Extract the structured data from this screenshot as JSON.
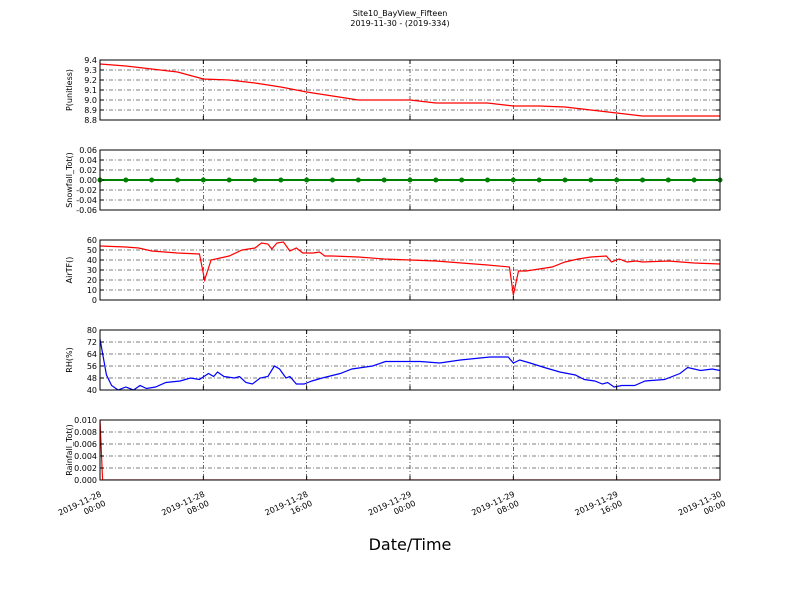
{
  "title": "Site10_BayView_Fifteen",
  "subtitle": "2019-11-30 - (2019-334)",
  "xlabel": "Date/Time",
  "chart_data": [
    {
      "type": "line",
      "ylabel": "P(unitless)",
      "color": "#ff0000",
      "grid": true,
      "xlim": [
        "2019-11-28 00:00",
        "2019-11-30 00:00"
      ],
      "xticks": [
        "2019-11-28 00:00",
        "2019-11-28 08:00",
        "2019-11-28 16:00",
        "2019-11-29 00:00",
        "2019-11-29 08:00",
        "2019-11-29 16:00",
        "2019-11-30 00:00"
      ],
      "ylim": [
        8.8,
        9.4
      ],
      "yticks": [
        8.8,
        8.9,
        {
          "value": 9,
          "label": "9.0"
        },
        9.1,
        9.2,
        9.3,
        9.4
      ],
      "x": [
        "2019-11-28 00:00",
        "2019-11-28 02:00",
        "2019-11-28 04:00",
        "2019-11-28 06:00",
        "2019-11-28 08:00",
        "2019-11-28 10:00",
        "2019-11-28 12:00",
        "2019-11-28 14:00",
        "2019-11-28 16:00",
        "2019-11-28 18:00",
        "2019-11-28 20:00",
        "2019-11-28 22:00",
        "2019-11-29 00:00",
        "2019-11-29 02:00",
        "2019-11-29 04:00",
        "2019-11-29 06:00",
        "2019-11-29 08:00",
        "2019-11-29 10:00",
        "2019-11-29 12:00",
        "2019-11-29 14:00",
        "2019-11-29 16:00",
        "2019-11-29 18:00",
        "2019-11-29 20:00",
        "2019-11-29 22:00",
        "2019-11-30 00:00"
      ],
      "values": [
        9.36,
        9.34,
        9.31,
        9.28,
        9.21,
        9.2,
        9.17,
        9.13,
        9.08,
        9.04,
        9.0,
        9.0,
        9.0,
        8.97,
        8.97,
        8.97,
        8.94,
        8.94,
        8.93,
        8.9,
        8.87,
        8.84,
        8.84,
        8.84,
        8.84
      ]
    },
    {
      "type": "line",
      "ylabel": "Snowfall_Tot()",
      "color": "#008000",
      "marker": true,
      "grid": true,
      "xlim": [
        "2019-11-28 00:00",
        "2019-11-30 00:00"
      ],
      "xticks": [
        "2019-11-28 00:00",
        "2019-11-28 08:00",
        "2019-11-28 16:00",
        "2019-11-29 00:00",
        "2019-11-29 08:00",
        "2019-11-29 16:00",
        "2019-11-30 00:00"
      ],
      "ylim": [
        -0.06,
        0.06
      ],
      "yticks": [
        -0.06,
        -0.04,
        -0.02,
        {
          "value": 0,
          "label": "0.00"
        },
        0.02,
        0.04,
        0.06
      ],
      "x": [
        "2019-11-28 00:00",
        "2019-11-28 02:00",
        "2019-11-28 04:00",
        "2019-11-28 06:00",
        "2019-11-28 08:00",
        "2019-11-28 10:00",
        "2019-11-28 12:00",
        "2019-11-28 14:00",
        "2019-11-28 16:00",
        "2019-11-28 18:00",
        "2019-11-28 20:00",
        "2019-11-28 22:00",
        "2019-11-29 00:00",
        "2019-11-29 02:00",
        "2019-11-29 04:00",
        "2019-11-29 06:00",
        "2019-11-29 08:00",
        "2019-11-29 10:00",
        "2019-11-29 12:00",
        "2019-11-29 14:00",
        "2019-11-29 16:00",
        "2019-11-29 18:00",
        "2019-11-29 20:00",
        "2019-11-29 22:00",
        "2019-11-30 00:00"
      ],
      "values": [
        0,
        0,
        0,
        0,
        0,
        0,
        0,
        0,
        0,
        0,
        0,
        0,
        0,
        0,
        0,
        0,
        0,
        0,
        0,
        0,
        0,
        0,
        0,
        0,
        0
      ]
    },
    {
      "type": "line",
      "ylabel": "AirTF()",
      "color": "#ff0000",
      "grid": true,
      "xlim": [
        "2019-11-28 00:00",
        "2019-11-30 00:00"
      ],
      "xticks": [
        "2019-11-28 00:00",
        "2019-11-28 08:00",
        "2019-11-28 16:00",
        "2019-11-29 00:00",
        "2019-11-29 08:00",
        "2019-11-29 16:00",
        "2019-11-30 00:00"
      ],
      "ylim": [
        0,
        60
      ],
      "yticks": [
        0,
        10,
        20,
        30,
        40,
        50,
        60
      ],
      "x": [
        "2019-11-28 00:00",
        "2019-11-28 02:00",
        "2019-11-28 03:00",
        "2019-11-28 04:00",
        "2019-11-28 06:00",
        "2019-11-28 07:42",
        "2019-11-28 08:06",
        "2019-11-28 08:36",
        "2019-11-28 10:00",
        "2019-11-28 11:00",
        "2019-11-28 12:00",
        "2019-11-28 12:30",
        "2019-11-28 13:00",
        "2019-11-28 13:18",
        "2019-11-28 13:42",
        "2019-11-28 14:12",
        "2019-11-28 14:42",
        "2019-11-28 15:12",
        "2019-11-28 15:42",
        "2019-11-28 16:30",
        "2019-11-28 17:00",
        "2019-11-28 17:24",
        "2019-11-28 18:00",
        "2019-11-28 20:00",
        "2019-11-28 22:00",
        "2019-11-29 00:00",
        "2019-11-29 02:00",
        "2019-11-29 04:00",
        "2019-11-29 06:00",
        "2019-11-29 07:42",
        "2019-11-29 08:00",
        "2019-11-29 08:24",
        "2019-11-29 09:00",
        "2019-11-29 10:00",
        "2019-11-29 11:00",
        "2019-11-29 12:00",
        "2019-11-29 13:00",
        "2019-11-29 14:00",
        "2019-11-29 15:12",
        "2019-11-29 15:36",
        "2019-11-29 16:12",
        "2019-11-29 16:48",
        "2019-11-29 17:30",
        "2019-11-29 18:00",
        "2019-11-29 20:00",
        "2019-11-29 22:00",
        "2019-11-30 00:00"
      ],
      "values": [
        54,
        53,
        52,
        49,
        47,
        46,
        20,
        40,
        44,
        50,
        52,
        57,
        56,
        51,
        57,
        58,
        49,
        52,
        47,
        47,
        48,
        44,
        44,
        43,
        41,
        40,
        39,
        37,
        35,
        33,
        5,
        29,
        29,
        31,
        33,
        38,
        41,
        43,
        44,
        38,
        41,
        38,
        39,
        38,
        39,
        37,
        36
      ]
    },
    {
      "type": "line",
      "ylabel": "RH(%)",
      "color": "#0000ff",
      "grid": true,
      "xlim": [
        "2019-11-28 00:00",
        "2019-11-30 00:00"
      ],
      "xticks": [
        "2019-11-28 00:00",
        "2019-11-28 08:00",
        "2019-11-28 16:00",
        "2019-11-29 00:00",
        "2019-11-29 08:00",
        "2019-11-29 16:00",
        "2019-11-30 00:00"
      ],
      "ylim": [
        40,
        80
      ],
      "yticks": [
        40,
        48,
        56,
        64,
        72,
        80
      ],
      "x": [
        "2019-11-28 00:00",
        "2019-11-28 00:30",
        "2019-11-28 00:54",
        "2019-11-28 01:24",
        "2019-11-28 02:00",
        "2019-11-28 02:36",
        "2019-11-28 03:06",
        "2019-11-28 03:36",
        "2019-11-28 04:18",
        "2019-11-28 05:06",
        "2019-11-28 06:12",
        "2019-11-28 07:00",
        "2019-11-28 07:42",
        "2019-11-28 08:24",
        "2019-11-28 08:48",
        "2019-11-28 09:06",
        "2019-11-28 09:36",
        "2019-11-28 10:24",
        "2019-11-28 10:48",
        "2019-11-28 11:18",
        "2019-11-28 11:48",
        "2019-11-28 12:24",
        "2019-11-28 13:00",
        "2019-11-28 13:30",
        "2019-11-28 13:54",
        "2019-11-28 14:24",
        "2019-11-28 14:42",
        "2019-11-28 15:12",
        "2019-11-28 15:48",
        "2019-11-28 16:24",
        "2019-11-28 17:12",
        "2019-11-28 18:36",
        "2019-11-28 19:30",
        "2019-11-28 21:06",
        "2019-11-28 22:06",
        "2019-11-28 23:12",
        "2019-11-29 00:48",
        "2019-11-29 02:18",
        "2019-11-29 03:54",
        "2019-11-29 06:12",
        "2019-11-29 07:36",
        "2019-11-29 08:00",
        "2019-11-29 08:30",
        "2019-11-29 09:18",
        "2019-11-29 10:24",
        "2019-11-29 11:36",
        "2019-11-29 12:48",
        "2019-11-29 13:30",
        "2019-11-29 14:18",
        "2019-11-29 14:54",
        "2019-11-29 15:18",
        "2019-11-29 15:48",
        "2019-11-29 16:24",
        "2019-11-29 17:24",
        "2019-11-29 18:12",
        "2019-11-29 19:42",
        "2019-11-29 20:54",
        "2019-11-29 21:30",
        "2019-11-29 22:30",
        "2019-11-29 23:24",
        "2019-11-30 00:00"
      ],
      "values": [
        74,
        50,
        43,
        40,
        42,
        40,
        43,
        41,
        42,
        45,
        46,
        48,
        47,
        51,
        49,
        52,
        49,
        48,
        49,
        45,
        44,
        48,
        49,
        56,
        54,
        48,
        49,
        44,
        44,
        46,
        48,
        51,
        54,
        56,
        59,
        59,
        59,
        58,
        60,
        62,
        62,
        58,
        60,
        58,
        55,
        52,
        50,
        47,
        46,
        44,
        45,
        42,
        43,
        43,
        46,
        47,
        51,
        55,
        53,
        54,
        53
      ]
    },
    {
      "type": "line",
      "ylabel": "Rainfall_Tot()",
      "color": "#ff0000",
      "grid": true,
      "show_xticklabels": true,
      "xlim": [
        "2019-11-28 00:00",
        "2019-11-30 00:00"
      ],
      "xticks": [
        "2019-11-28 00:00",
        "2019-11-28 08:00",
        "2019-11-28 16:00",
        "2019-11-29 00:00",
        "2019-11-29 08:00",
        "2019-11-29 16:00",
        "2019-11-30 00:00"
      ],
      "ylim": [
        0,
        0.01
      ],
      "yticks": [
        {
          "value": 0,
          "label": "0.000"
        },
        0.002,
        0.004,
        0.006,
        0.008,
        {
          "value": 0.01,
          "label": "0.010"
        }
      ],
      "x": [
        "2019-11-28 00:00",
        "2019-11-28 00:12",
        "2019-11-28 02:00",
        "2019-11-28 04:00",
        "2019-11-28 06:00",
        "2019-11-28 08:00",
        "2019-11-28 10:00",
        "2019-11-28 12:00",
        "2019-11-28 14:00",
        "2019-11-28 16:00",
        "2019-11-28 18:00",
        "2019-11-28 20:00",
        "2019-11-28 22:00",
        "2019-11-29 00:00",
        "2019-11-29 02:00",
        "2019-11-29 04:00",
        "2019-11-29 06:00",
        "2019-11-29 08:00",
        "2019-11-29 10:00",
        "2019-11-29 12:00",
        "2019-11-29 14:00",
        "2019-11-29 16:00",
        "2019-11-29 18:00",
        "2019-11-29 20:00",
        "2019-11-29 22:00",
        "2019-11-30 00:00"
      ],
      "values": [
        0.01,
        0,
        0,
        0,
        0,
        0,
        0,
        0,
        0,
        0,
        0,
        0,
        0,
        0,
        0,
        0,
        0,
        0,
        0,
        0,
        0,
        0,
        0,
        0,
        0,
        0
      ]
    }
  ]
}
